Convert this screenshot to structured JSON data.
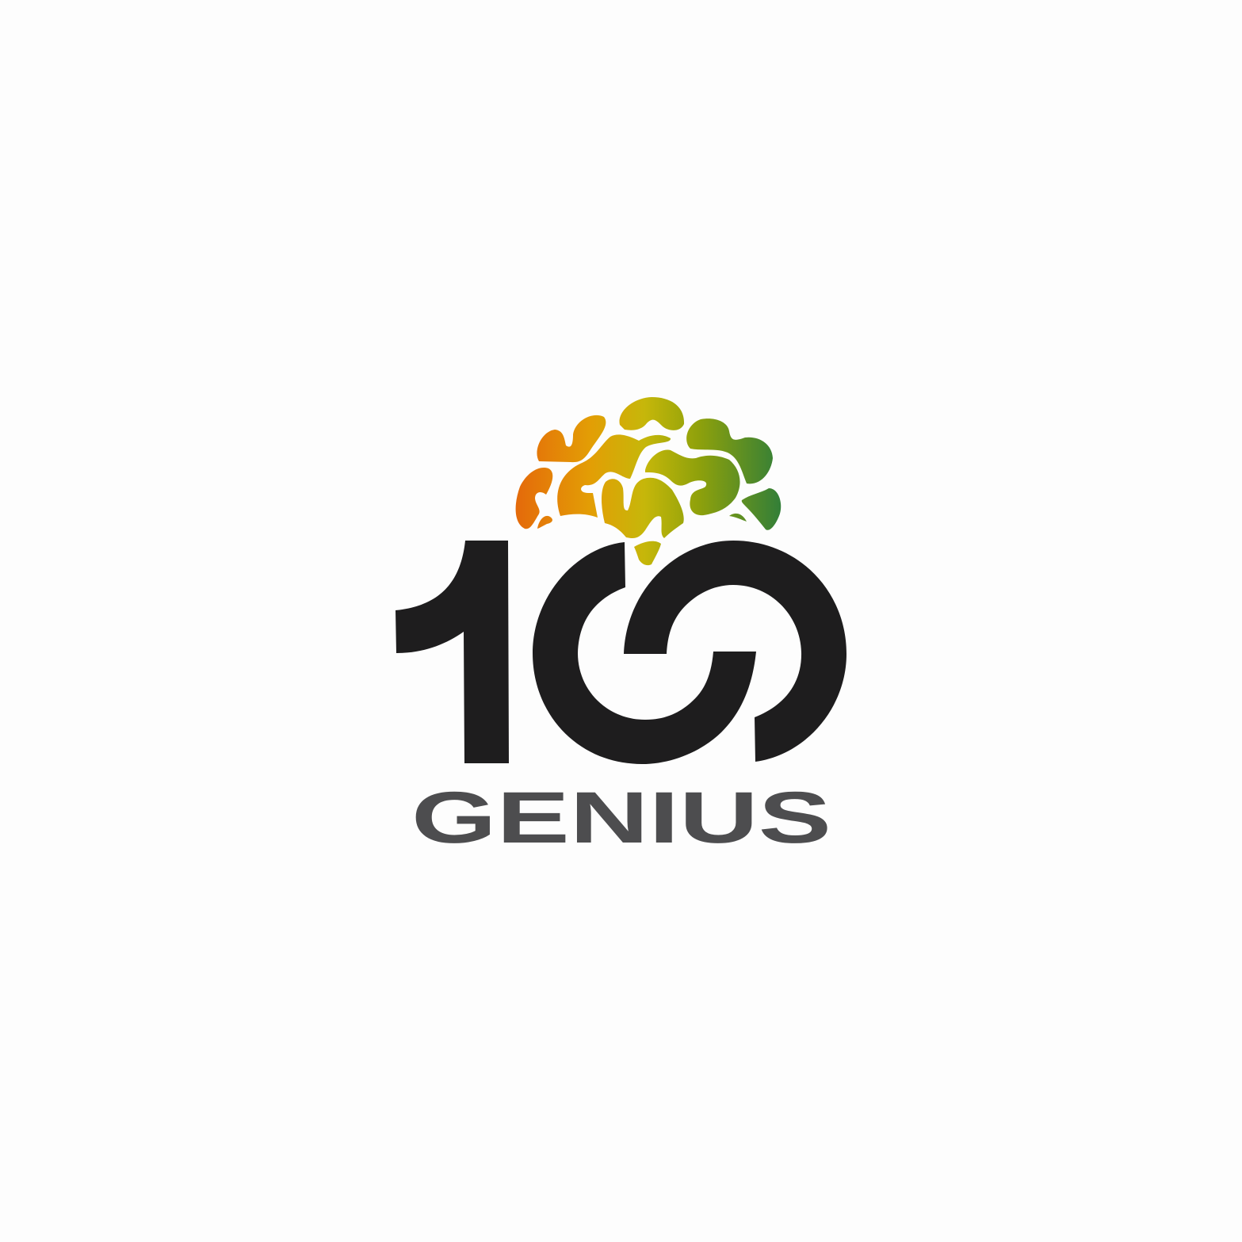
{
  "logo": {
    "number": "100",
    "wordmark": "GENIUS",
    "icon": "brain-icon",
    "colors": {
      "background": "#fdfdfd",
      "number": "#1e1d1e",
      "wordmark": "#4d4d4f",
      "brain_orange": "#e4690a",
      "brain_amber": "#e39e05",
      "brain_yellow": "#c6b70a",
      "brain_olive": "#8fa10b",
      "brain_green": "#2e7d3a"
    }
  }
}
